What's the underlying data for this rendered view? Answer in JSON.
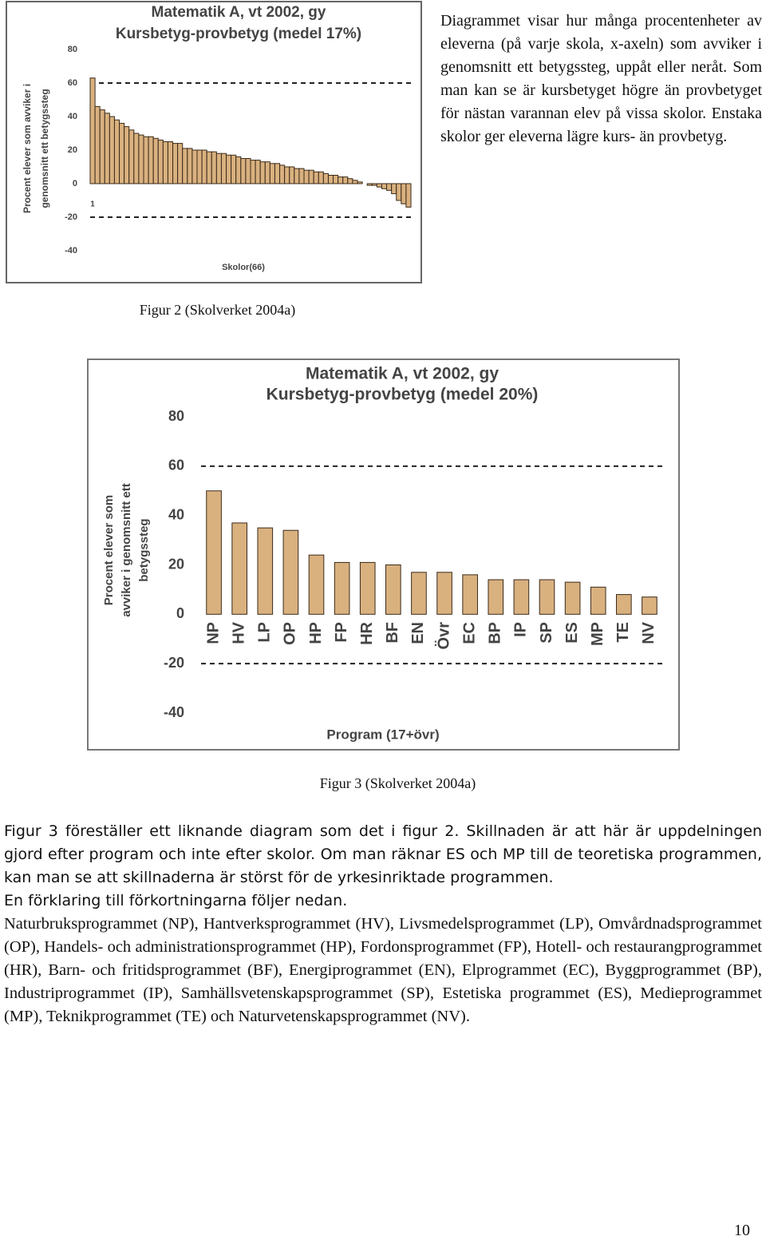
{
  "chart_data": [
    {
      "type": "bar",
      "title": "Matematik A, vt 2002, gy",
      "subtitle": "Kursbetyg-provbetyg (medel 17%)",
      "ylabel": [
        "Procent elever som avviker i",
        "genomsnitt ett betygssteg"
      ],
      "xlabel": "Skolor(66)",
      "categories": [
        "1",
        null,
        null,
        null,
        null,
        null,
        null,
        null,
        null,
        null,
        null,
        null,
        null,
        null,
        null,
        null,
        null,
        null,
        null,
        null,
        null,
        null,
        null,
        null,
        null,
        null,
        null,
        null,
        null,
        null,
        null,
        null,
        null,
        null,
        null,
        null,
        null,
        null,
        null,
        null,
        null,
        null,
        null,
        null,
        null,
        null,
        null,
        null,
        null,
        null,
        null,
        null,
        null,
        null,
        null,
        null,
        null,
        null,
        null,
        null,
        null,
        null,
        null,
        null,
        null,
        null
      ],
      "values": [
        63,
        46,
        44,
        42,
        40,
        38,
        36,
        34,
        32,
        30,
        29,
        28,
        28,
        27,
        26,
        25,
        25,
        24,
        24,
        21,
        21,
        20,
        20,
        20,
        19,
        19,
        18,
        18,
        17,
        17,
        16,
        15,
        15,
        14,
        14,
        13,
        13,
        12,
        12,
        11,
        10,
        10,
        9,
        9,
        8,
        8,
        7,
        7,
        6,
        5,
        5,
        4,
        4,
        3,
        2,
        1,
        0,
        -1,
        -1,
        -2,
        -3,
        -4,
        -6,
        -10,
        -12,
        -14
      ],
      "color": "#d9b17f",
      "ylim": [
        -40,
        80
      ],
      "yticks": [
        80,
        60,
        40,
        20,
        0,
        -20,
        -40
      ],
      "reference_lines": [
        60,
        -20
      ]
    },
    {
      "type": "bar",
      "title": "Matematik A, vt 2002, gy",
      "subtitle": "Kursbetyg-provbetyg (medel 20%)",
      "ylabel": [
        "Procent elever som",
        "avviker i genomsnitt ett",
        "betygssteg"
      ],
      "xlabel": "Program (17+övr)",
      "categories": [
        "NP",
        "HV",
        "LP",
        "OP",
        "HP",
        "FP",
        "HR",
        "BF",
        "EN",
        "Övr",
        "EC",
        "BP",
        "IP",
        "SP",
        "ES",
        "MP",
        "TE",
        "NV"
      ],
      "values": [
        50,
        37,
        35,
        34,
        24,
        21,
        21,
        20,
        17,
        17,
        16,
        14,
        14,
        14,
        13,
        11,
        8,
        7
      ],
      "color": "#d9b17f",
      "ylim": [
        -40,
        80
      ],
      "yticks": [
        80,
        60,
        40,
        20,
        0,
        -20,
        -40
      ],
      "reference_lines": [
        60,
        -20
      ]
    }
  ],
  "document": {
    "side_text": "Diagrammet visar hur många procentenheter av eleverna (på varje skola, x-axeln) som avviker i genomsnitt ett betygssteg, uppåt eller neråt. Som man kan se är kursbetyget högre än provbetyget för nästan varannan elev på vissa skolor. Enstaka skolor ger eleverna lägre kurs- än provbetyg.",
    "caption_1": "Figur 2 (Skolverket 2004a)",
    "caption_2": "Figur 3 (Skolverket 2004a)",
    "paragraph_1": "Figur 3 föreställer ett liknande diagram som det i figur 2. Skillnaden är att här är uppdelningen gjord efter program och inte efter skolor. Om man räknar ES och MP till de teoretiska programmen, kan man se att skillnaderna är störst för de yrkesinriktade programmen.",
    "paragraph_2": "En förklaring till förkortningarna följer nedan.",
    "paragraph_3": "Naturbruksprogrammet (NP), Hantverksprogrammet (HV), Livsmedelsprogrammet (LP), Omvårdnadsprogrammet (OP), Handels- och administrationsprogrammet (HP), Fordonsprogrammet (FP), Hotell- och restaurangprogrammet (HR), Barn- och fritidsprogrammet (BF), Energiprogrammet (EN), Elprogrammet (EC), Byggprogrammet (BP), Industriprogrammet (IP), Samhällsvetenskapsprogrammet (SP), Estetiska programmet (ES), Medieprogrammet (MP), Teknikprogrammet (TE) och Naturvetenskapsprogrammet (NV).",
    "page_number": "10"
  }
}
